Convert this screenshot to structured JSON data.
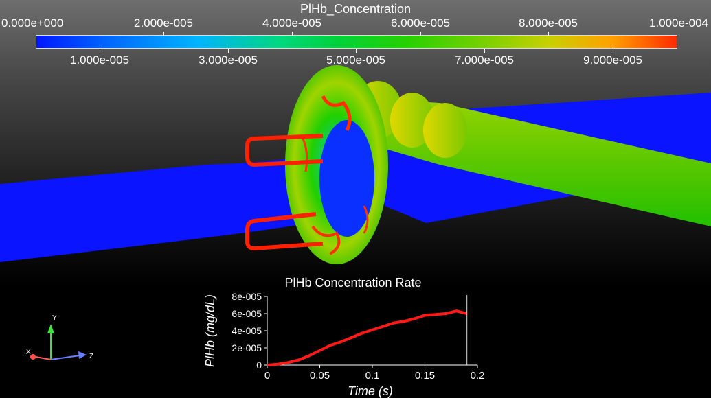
{
  "colorbar": {
    "title": "PlHb_Concentration",
    "top_labels": [
      "0.000e+000",
      "2.000e-005",
      "4.000e-005",
      "6.000e-005",
      "8.000e-005",
      "1.000e-004"
    ],
    "bottom_labels": [
      "1.000e-005",
      "3.000e-005",
      "5.000e-005",
      "7.000e-005",
      "9.000e-005"
    ]
  },
  "axes_triad": {
    "x": "X",
    "y": "Y",
    "z": "Z"
  },
  "chart_data": {
    "type": "line",
    "title": "PlHb Concentration Rate",
    "xlabel": "Time (s)",
    "ylabel": "PlHb (mg/dL)",
    "xlim": [
      0,
      0.2
    ],
    "ylim": [
      0,
      8e-05
    ],
    "x_ticks": [
      "0",
      "0.05",
      "0.1",
      "0.15",
      "0.2"
    ],
    "y_ticks": [
      "0",
      "2e-005",
      "4e-005",
      "6e-005",
      "8e-005"
    ],
    "grid": false,
    "series": [
      {
        "color": "#ff1a1a",
        "x": [
          0,
          0.01,
          0.02,
          0.03,
          0.04,
          0.05,
          0.06,
          0.07,
          0.08,
          0.09,
          0.1,
          0.11,
          0.12,
          0.13,
          0.14,
          0.15,
          0.16,
          0.17,
          0.18,
          0.19
        ],
        "y": [
          0,
          1e-06,
          3e-06,
          6e-06,
          1.1e-05,
          1.7e-05,
          2.3e-05,
          2.7e-05,
          3.2e-05,
          3.7e-05,
          4.1e-05,
          4.5e-05,
          4.9e-05,
          5.1e-05,
          5.4e-05,
          5.8e-05,
          5.9e-05,
          6e-05,
          6.3e-05,
          6e-05
        ]
      }
    ],
    "cursor_x": 0.19
  }
}
